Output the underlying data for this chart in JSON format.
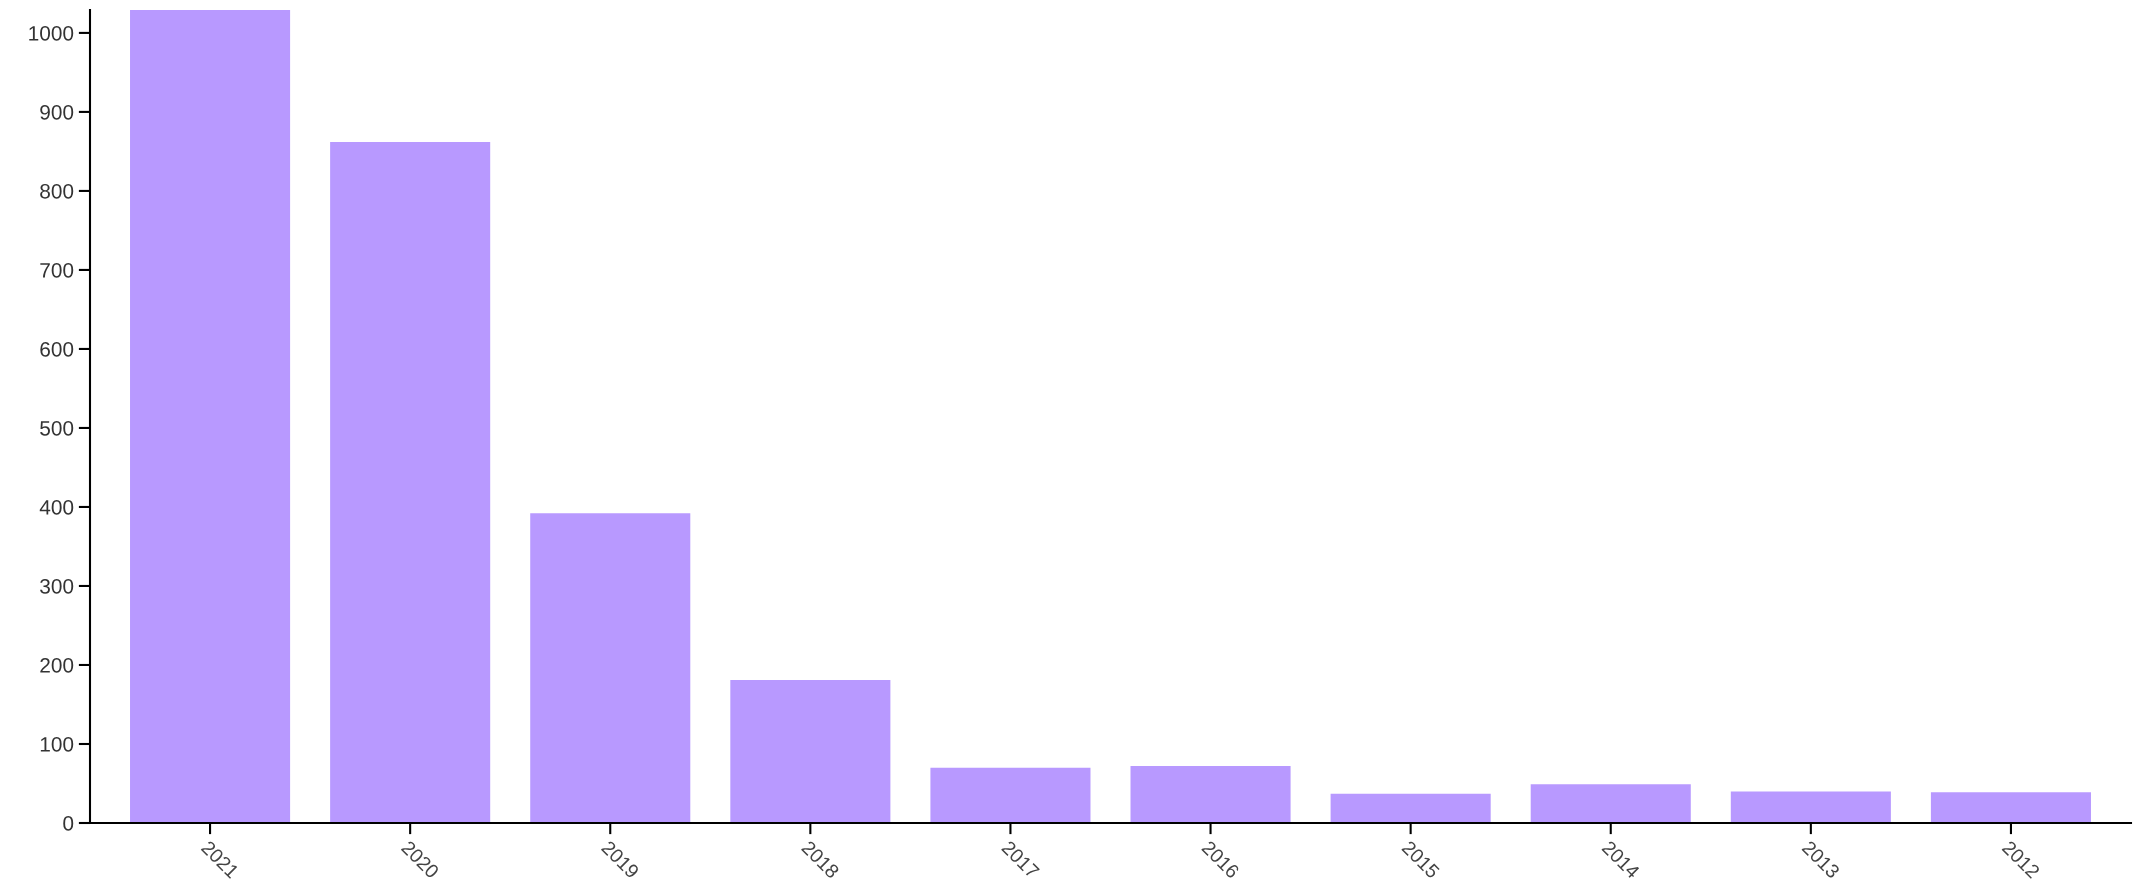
{
  "chart_data": {
    "type": "bar",
    "categories": [
      "2021",
      "2020",
      "2019",
      "2018",
      "2017",
      "2016",
      "2015",
      "2014",
      "2013",
      "2012"
    ],
    "values": [
      1029,
      862,
      392,
      181,
      70,
      72,
      37,
      49,
      40,
      39
    ],
    "color": "#b899ff",
    "ylim": [
      0,
      1029
    ],
    "yticks": [
      0,
      100,
      200,
      300,
      400,
      500,
      600,
      700,
      800,
      900,
      1000
    ],
    "grid": false
  }
}
